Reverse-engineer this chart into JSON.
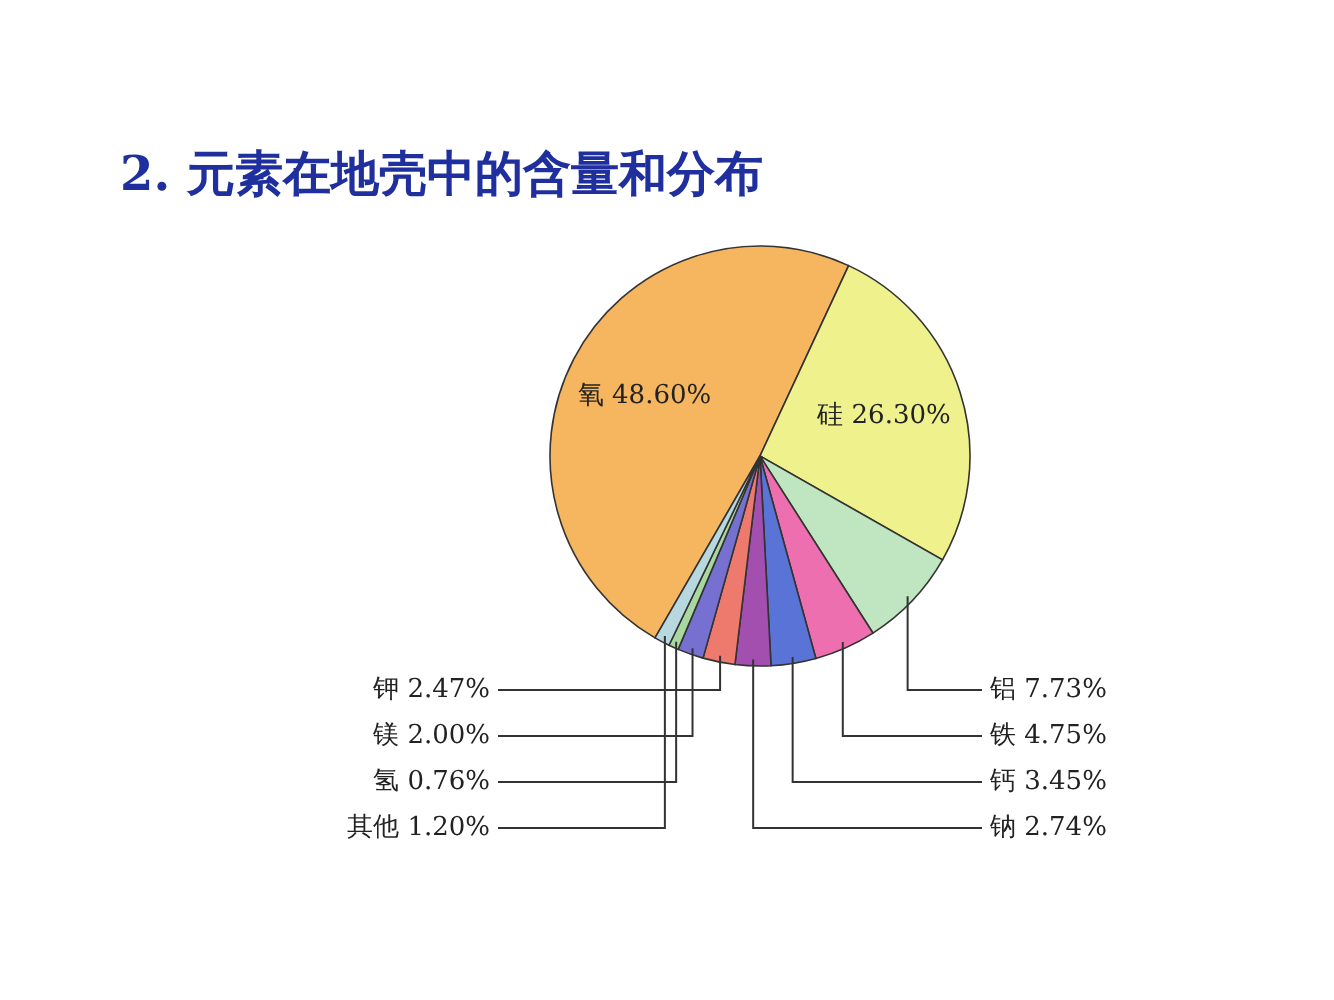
{
  "chart_data": {
    "type": "pie",
    "title": "2. 元素在地壳中的含量和分布",
    "categories": [
      "氧",
      "硅",
      "铝",
      "铁",
      "钙",
      "钠",
      "钾",
      "镁",
      "氢",
      "其他"
    ],
    "values": [
      48.6,
      26.3,
      7.73,
      4.75,
      3.45,
      2.74,
      2.47,
      2.0,
      0.76,
      1.2
    ],
    "value_labels": [
      "48.60%",
      "26.30%",
      "7.73%",
      "4.75%",
      "3.45%",
      "2.74%",
      "2.47%",
      "2.00%",
      "0.76%",
      "1.20%"
    ],
    "colors": [
      "#f6b55f",
      "#eef18c",
      "#bfe6c0",
      "#ee6fb0",
      "#5a73d6",
      "#a24fb0",
      "#ee7a6e",
      "#7670d0",
      "#a8d8a0",
      "#b8d8e0"
    ]
  }
}
